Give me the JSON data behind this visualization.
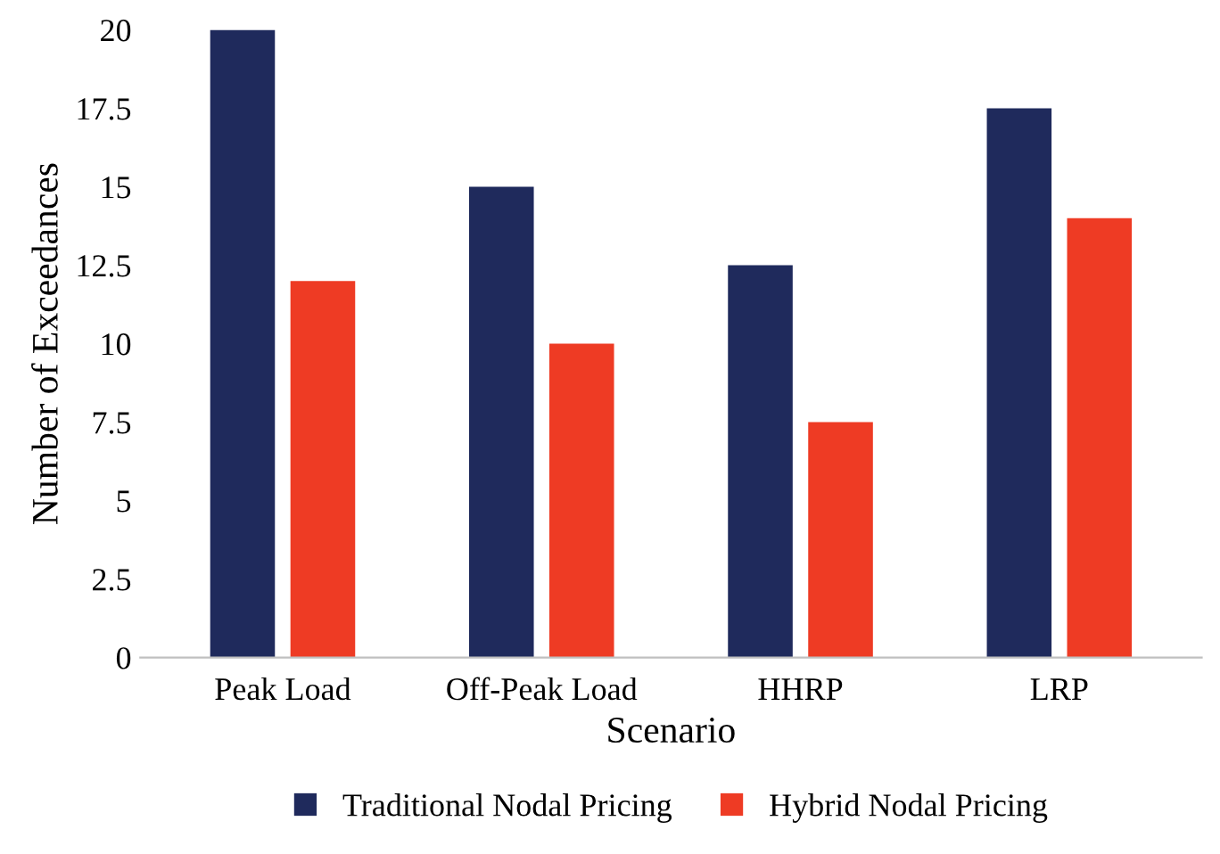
{
  "chart_data": {
    "type": "bar",
    "xlabel": "Scenario",
    "ylabel": "Number of Exceedances",
    "categories": [
      "Peak Load",
      "Off-Peak Load",
      "HHRP",
      "LRP"
    ],
    "series": [
      {
        "name": "Traditional Nodal Pricing",
        "color": "#1f2a5c",
        "values": [
          20,
          15,
          12.5,
          17.5
        ]
      },
      {
        "name": "Hybrid Nodal Pricing",
        "color": "#ee3b24",
        "values": [
          12,
          10,
          7.5,
          14
        ]
      }
    ],
    "ylim": [
      0,
      20
    ],
    "yticks": [
      0,
      2.5,
      5,
      7.5,
      10,
      12.5,
      15,
      17.5,
      20
    ],
    "grid": false,
    "legend": "bottom"
  }
}
